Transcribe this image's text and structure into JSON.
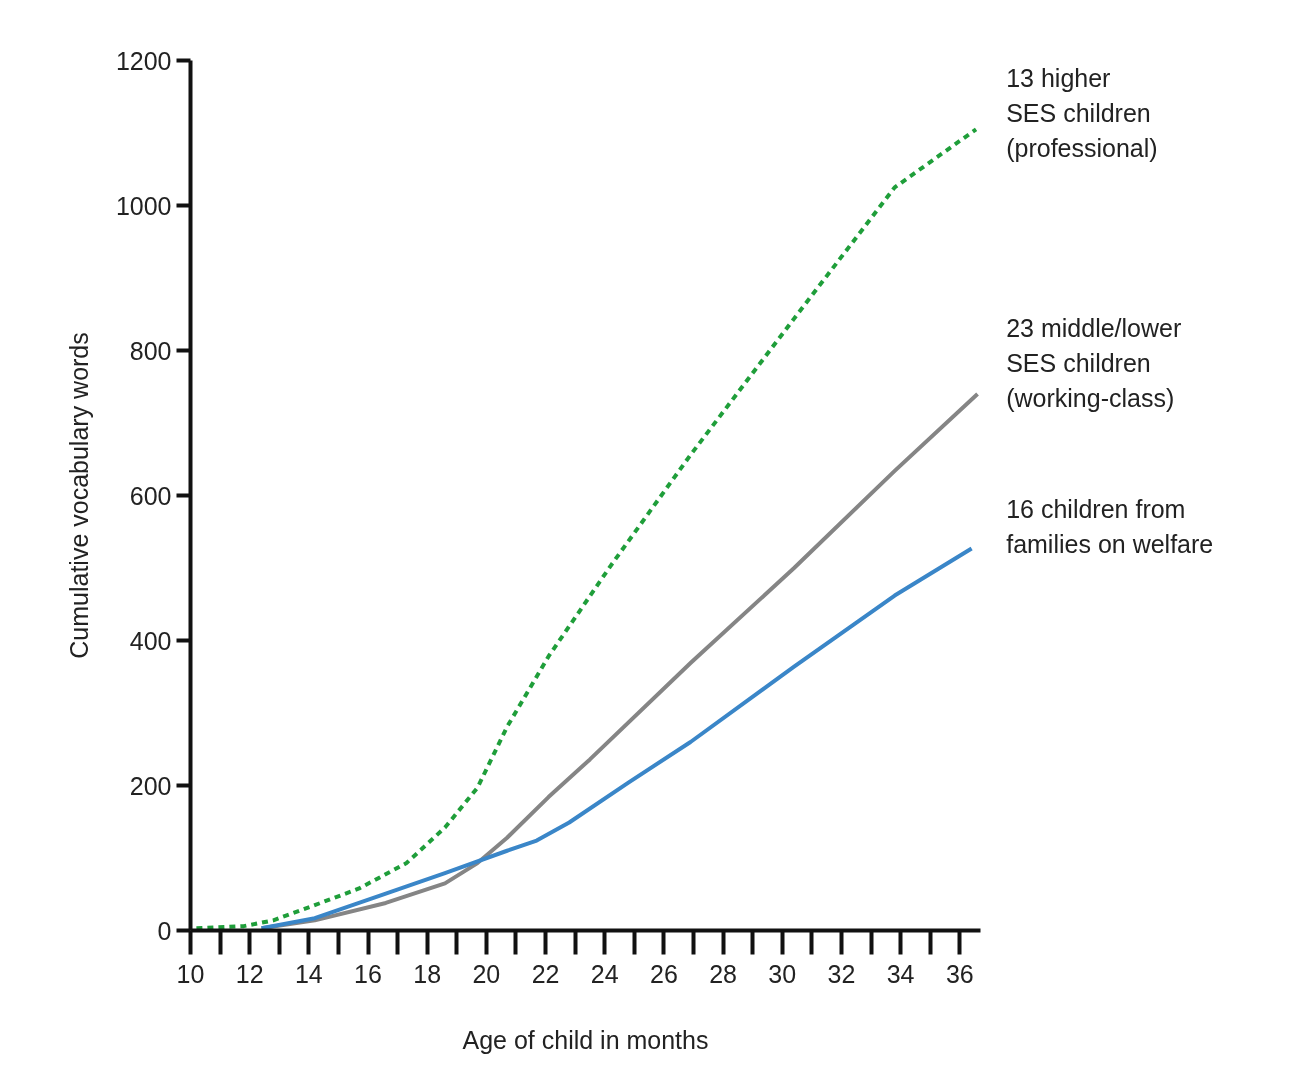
{
  "chart_data": {
    "type": "line",
    "xlabel": "Age of child in months",
    "ylabel": "Cumulative vocabulary words",
    "xlim": [
      10,
      36.7
    ],
    "ylim": [
      0,
      1200
    ],
    "xticks": [
      10,
      12,
      14,
      16,
      18,
      20,
      22,
      24,
      26,
      28,
      30,
      32,
      34,
      36
    ],
    "yticks": [
      0,
      200,
      400,
      600,
      800,
      1000,
      1200
    ],
    "grid": false,
    "series": [
      {
        "name": "13 higher\nSES children\n(professional)",
        "color": "#1f9e3a",
        "line_style": "dashed",
        "x": [
          10.2,
          11.8,
          12.8,
          14.2,
          15.7,
          17.3,
          18.6,
          19.7,
          20.7,
          22.1,
          24.2,
          26.9,
          30.4,
          33.8,
          36.55
        ],
        "values": [
          3,
          6,
          14,
          35,
          58,
          93,
          142,
          197,
          281,
          378,
          503,
          656,
          844,
          1025,
          1105
        ]
      },
      {
        "name": "23 middle/lower\nSES children\n(working-class)",
        "color": "#858585",
        "line_style": "solid",
        "x": [
          12.4,
          14.2,
          16.6,
          18.6,
          19.7,
          20.7,
          22.1,
          23.5,
          26.9,
          30.4,
          33.8,
          36.6
        ],
        "values": [
          3,
          14,
          38,
          65,
          93,
          128,
          184,
          236,
          369,
          500,
          634,
          740
        ]
      },
      {
        "name": "16 children from\nfamilies on welfare",
        "color": "#3a86c8",
        "line_style": "solid",
        "x": [
          12.4,
          14.2,
          16.6,
          18.6,
          20.7,
          21.7,
          22.8,
          24.8,
          26.9,
          30.4,
          33.8,
          36.4
        ],
        "values": [
          3,
          17,
          51,
          79,
          110,
          124,
          149,
          204,
          260,
          364,
          462,
          527
        ]
      }
    ]
  }
}
